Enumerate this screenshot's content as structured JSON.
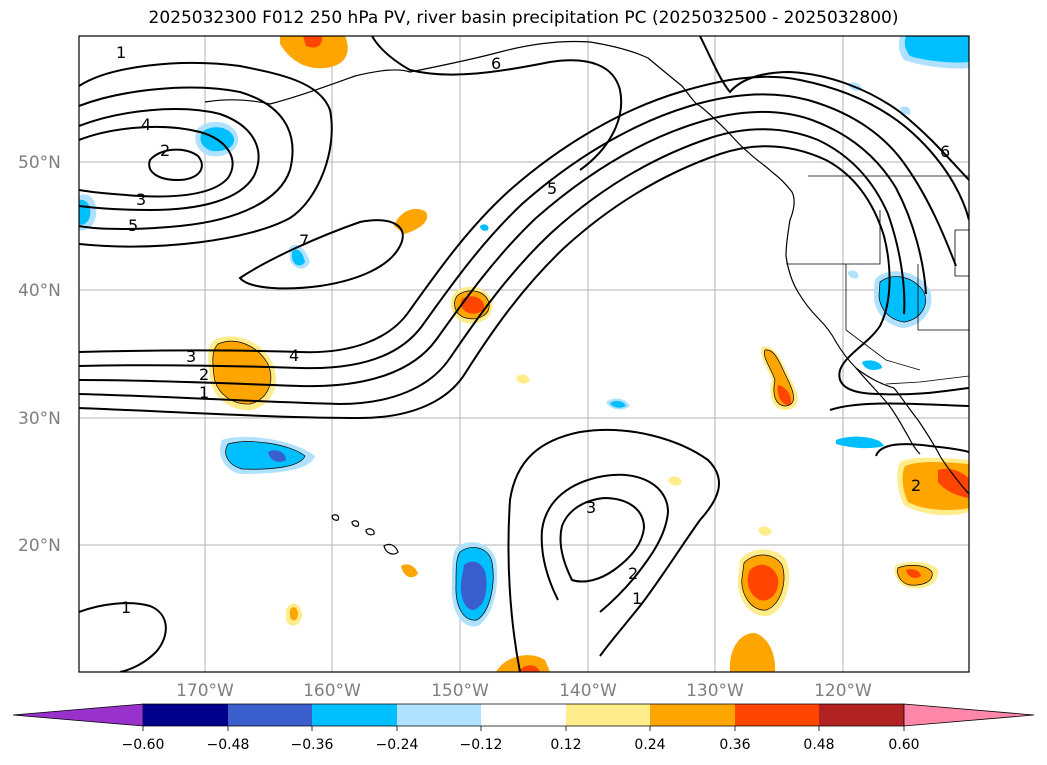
{
  "title": "2025032300 F012 250 hPa PV, river basin precipitation PC (2025032500 - 2025032800)",
  "lat_labels": [
    "50°N",
    "40°N",
    "30°N",
    "20°N"
  ],
  "lon_labels": [
    "170°W",
    "160°W",
    "150°W",
    "140°W",
    "130°W",
    "120°W"
  ],
  "contour_labels": [
    "1",
    "4",
    "2",
    "3",
    "5",
    "7",
    "6",
    "5",
    "4",
    "3",
    "2",
    "1",
    "3",
    "2",
    "1",
    "2",
    "6",
    "1"
  ],
  "colorbar": {
    "ticks": [
      "−0.60",
      "−0.48",
      "−0.36",
      "−0.24",
      "−0.12",
      "0.12",
      "0.24",
      "0.36",
      "0.48",
      "0.60"
    ],
    "colors": [
      "#9932cc",
      "#00008b",
      "#3a5fcd",
      "#00bfff",
      "#b0e2ff",
      "#ffffff",
      "#ffec8b",
      "#ffa500",
      "#ff4500",
      "#b22222",
      "#ff88aa"
    ]
  },
  "colors": {
    "contour": "#000000",
    "coastline": "#000000",
    "gridline": "#b3b3b3",
    "axis_label": "#7f7f7f"
  }
}
